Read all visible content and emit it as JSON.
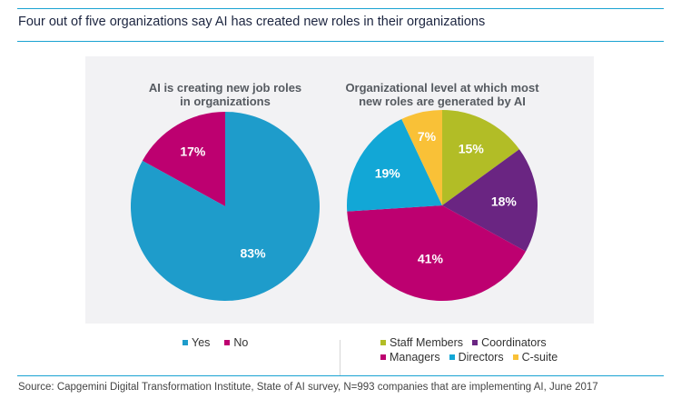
{
  "header": {
    "title": "Four out of five organizations say AI has created new roles in their organizations"
  },
  "footer": {
    "source": "Source: Capgemini Digital Transformation Institute, State of AI survey, N=993 companies that are implementing AI, June 2017"
  },
  "chart_data": [
    {
      "type": "pie",
      "title_lines": [
        "AI is creating new job roles",
        "in organizations"
      ],
      "categories": [
        "Yes",
        "No"
      ],
      "values": [
        83,
        17
      ],
      "labels": [
        "83%",
        "17%"
      ],
      "colors": [
        "#1e9ccb",
        "#bd0070"
      ],
      "start": "No slice begins at 12 o'clock going counterclockwise",
      "legend": {
        "placement": "bottom",
        "entries": [
          "Yes",
          "No"
        ]
      }
    },
    {
      "type": "pie",
      "title_lines": [
        "Organizational level at which most",
        "new roles are generated by AI"
      ],
      "categories": [
        "Staff Members",
        "Coordinators",
        "Managers",
        "Directors",
        "C-suite"
      ],
      "values": [
        15,
        18,
        41,
        19,
        7
      ],
      "labels": [
        "15%",
        "18%",
        "41%",
        "19%",
        "7%"
      ],
      "colors": [
        "#b2bd26",
        "#6a2582",
        "#bd0070",
        "#12a7d6",
        "#f9c137"
      ],
      "legend": {
        "placement": "bottom",
        "entries": [
          "Staff Members",
          "Coordinators",
          "Managers",
          "Directors",
          "C-suite"
        ]
      }
    }
  ]
}
